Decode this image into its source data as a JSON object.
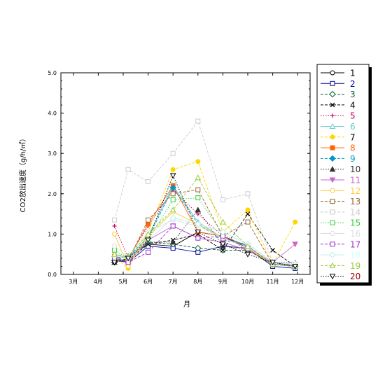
{
  "chart_data": {
    "type": "line",
    "title": "",
    "xlabel": "月",
    "ylabel": "CO2放出速度（g/h/㎡）",
    "categories": [
      "3月",
      "4月",
      "5月",
      "6月",
      "7月",
      "8月",
      "9月",
      "10月",
      "11月",
      "12月"
    ],
    "x": [
      4.65,
      5.2,
      6.0,
      7.0,
      8.0,
      9.0,
      10.0,
      11.0,
      11.9
    ],
    "ylim": [
      0,
      5
    ],
    "yticks": [
      "0.0",
      "1.0",
      "2.0",
      "3.0",
      "4.0",
      "5.0"
    ],
    "grid": false,
    "legend_position": "right",
    "series": [
      {
        "name": "1",
        "label_color": "#000000",
        "color": "#000000",
        "marker": "circle-open",
        "dash": "solid",
        "values": [
          0.4,
          0.45,
          0.75,
          0.7,
          1.05,
          0.95,
          0.65,
          0.3,
          0.2
        ]
      },
      {
        "name": "2",
        "label_color": "#000099",
        "color": "#000099",
        "marker": "square-open",
        "dash": "solid",
        "values": [
          0.35,
          0.3,
          0.7,
          0.65,
          0.55,
          0.7,
          0.65,
          0.2,
          0.15
        ]
      },
      {
        "name": "3",
        "label_color": "#006633",
        "color": "#006633",
        "marker": "diamond-open",
        "dash": "dash",
        "values": [
          0.3,
          0.4,
          0.8,
          0.75,
          0.65,
          0.6,
          0.6,
          0.25,
          0.2
        ]
      },
      {
        "name": "4",
        "label_color": "#000000",
        "color": "#000000",
        "marker": "x",
        "dash": "dash",
        "values": [
          0.35,
          0.35,
          0.75,
          0.85,
          1.0,
          0.6,
          1.5,
          0.6,
          0.2
        ]
      },
      {
        "name": "5",
        "label_color": "#cc0066",
        "color": "#cc0066",
        "marker": "plus",
        "dash": "dot",
        "values": [
          1.2,
          0.4,
          1.2,
          2.1,
          1.5,
          0.95,
          0.6,
          0.3,
          0.3
        ]
      },
      {
        "name": "6",
        "label_color": "#66cccc",
        "color": "#66cccc",
        "marker": "triangle-open",
        "dash": "solid",
        "values": [
          0.5,
          0.4,
          0.95,
          2.2,
          1.3,
          0.9,
          0.7,
          0.25,
          0.25
        ]
      },
      {
        "name": "7",
        "label_color": "#000000",
        "color": "#ffd700",
        "marker": "circle-filled",
        "dash": "dash",
        "values": [
          0.45,
          0.15,
          1.05,
          2.6,
          2.8,
          1.05,
          1.6,
          0.25,
          1.3
        ]
      },
      {
        "name": "8",
        "label_color": "#ff6600",
        "color": "#ff6600",
        "marker": "square-filled",
        "dash": "solid",
        "values": [
          0.45,
          0.4,
          1.25,
          2.2,
          1.05,
          0.95,
          0.7,
          0.25,
          0.2
        ]
      },
      {
        "name": "9",
        "label_color": "#0099cc",
        "color": "#0099cc",
        "marker": "diamond-filled",
        "dash": "dash",
        "values": [
          0.35,
          0.45,
          0.9,
          2.15,
          1.25,
          0.85,
          0.75,
          0.3,
          0.2
        ]
      },
      {
        "name": "10",
        "label_color": "#333333",
        "color": "#333333",
        "marker": "triangle-filled",
        "dash": "dot",
        "values": [
          0.3,
          0.35,
          0.8,
          0.8,
          1.6,
          0.7,
          0.6,
          0.25,
          0.2
        ]
      },
      {
        "name": "11",
        "label_color": "#cc66cc",
        "color": "#cc66cc",
        "marker": "triangle-down-filled",
        "dash": "solid",
        "values": [
          0.4,
          0.3,
          0.85,
          1.2,
          0.9,
          0.8,
          0.6,
          0.3,
          0.75
        ]
      },
      {
        "name": "12",
        "label_color": "#ffcc33",
        "color": "#ffcc33",
        "marker": "circle-open",
        "dash": "solid",
        "values": [
          1.0,
          0.2,
          0.95,
          1.55,
          1.25,
          0.9,
          0.65,
          0.25,
          0.2
        ]
      },
      {
        "name": "13",
        "label_color": "#996633",
        "color": "#996633",
        "marker": "square-open",
        "dash": "dash",
        "values": [
          0.4,
          0.35,
          1.35,
          2.0,
          2.1,
          0.95,
          1.3,
          0.25,
          0.2
        ]
      },
      {
        "name": "14",
        "label_color": "#cccccc",
        "color": "#cccccc",
        "marker": "square-open",
        "dash": "dash",
        "values": [
          1.35,
          2.6,
          2.3,
          3.0,
          3.8,
          1.85,
          2.0,
          0.3,
          0.25
        ]
      },
      {
        "name": "15",
        "label_color": "#33cc33",
        "color": "#33cc33",
        "marker": "square-open",
        "dash": "dot",
        "values": [
          0.6,
          0.4,
          0.85,
          1.85,
          1.9,
          1.0,
          0.65,
          0.3,
          0.2
        ]
      },
      {
        "name": "16",
        "label_color": "#dddddd",
        "color": "#dddddd",
        "marker": "circle-open",
        "dash": "solid",
        "values": [
          0.7,
          0.45,
          1.05,
          1.35,
          1.2,
          0.9,
          0.65,
          0.3,
          0.25
        ]
      },
      {
        "name": "17",
        "label_color": "#9933cc",
        "color": "#9933cc",
        "marker": "square-open",
        "dash": "dash",
        "values": [
          0.4,
          0.3,
          0.55,
          1.2,
          0.9,
          0.95,
          0.7,
          0.25,
          0.2
        ]
      },
      {
        "name": "18",
        "label_color": "#ccffff",
        "color": "#bbeeee",
        "marker": "diamond-open",
        "dash": "solid",
        "values": [
          0.45,
          0.4,
          0.85,
          1.4,
          1.25,
          1.05,
          0.75,
          0.3,
          0.25
        ]
      },
      {
        "name": "19",
        "label_color": "#99cc33",
        "color": "#99cc33",
        "marker": "triangle-open",
        "dash": "dash",
        "values": [
          0.5,
          0.45,
          1.0,
          1.6,
          2.4,
          1.3,
          0.7,
          0.25,
          0.2
        ]
      },
      {
        "name": "20",
        "label_color": "#990000",
        "color": "#000000",
        "marker": "triangle-down-open",
        "dash": "dot",
        "values": [
          0.3,
          0.4,
          0.85,
          2.45,
          1.05,
          0.75,
          0.5,
          0.3,
          0.2
        ]
      }
    ]
  }
}
